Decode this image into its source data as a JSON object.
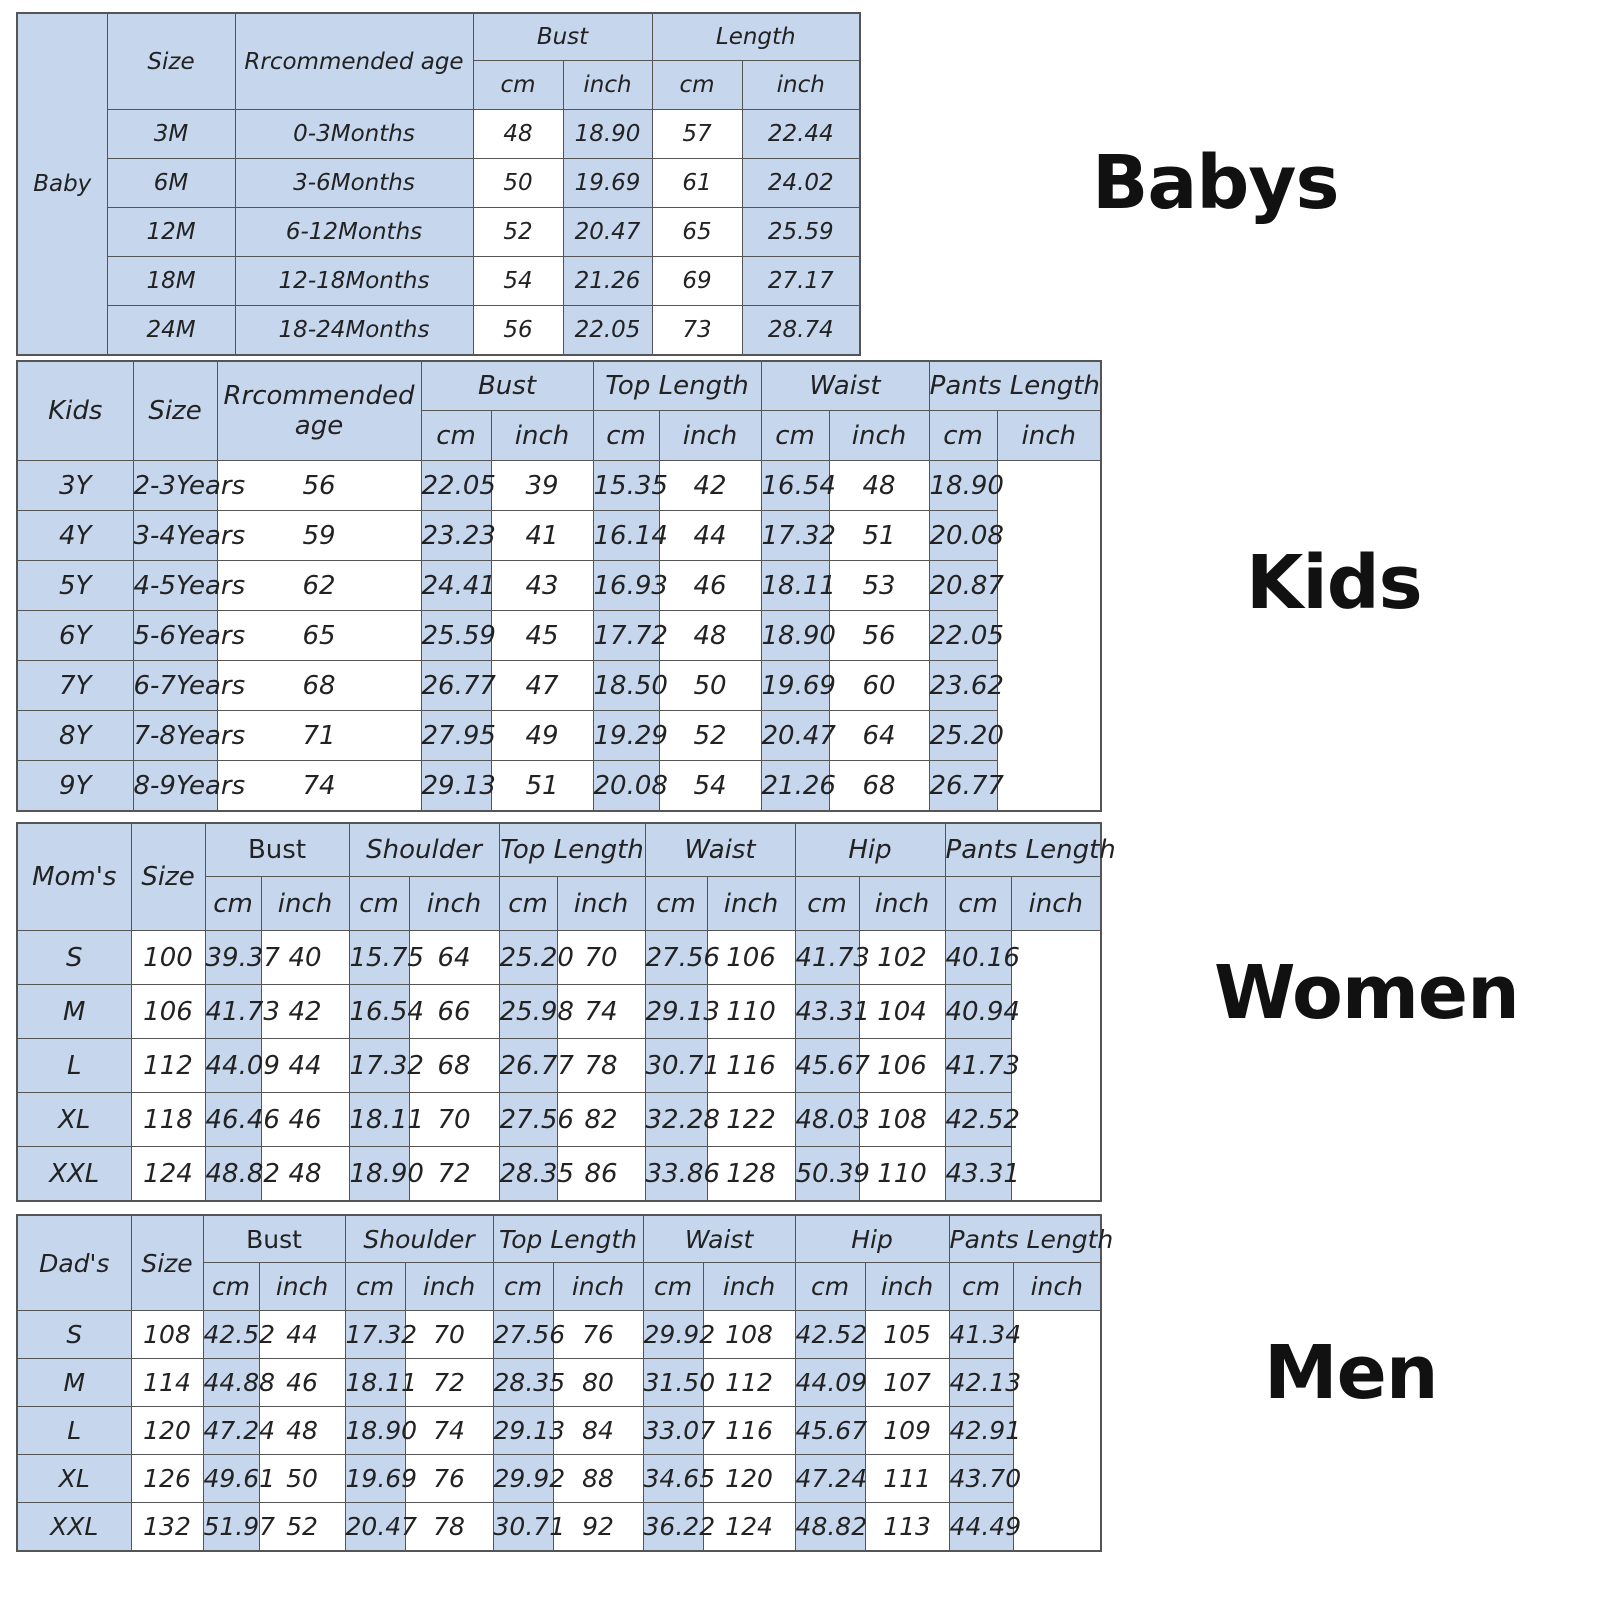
{
  "baby": {
    "category": "Baby",
    "heading": "Babys",
    "headers": {
      "size": "Size",
      "age": "Rrcommended age",
      "bust": "Bust",
      "length": "Length",
      "cm": "cm",
      "inch": "inch"
    },
    "rows": [
      [
        "3M",
        "0-3Months",
        "48",
        "18.90",
        "57",
        "22.44"
      ],
      [
        "6M",
        "3-6Months",
        "50",
        "19.69",
        "61",
        "24.02"
      ],
      [
        "12M",
        "6-12Months",
        "52",
        "20.47",
        "65",
        "25.59"
      ],
      [
        "18M",
        "12-18Months",
        "54",
        "21.26",
        "69",
        "27.17"
      ],
      [
        "24M",
        "18-24Months",
        "56",
        "22.05",
        "73",
        "28.74"
      ]
    ]
  },
  "kids": {
    "category": "Kids",
    "heading": "Kids",
    "headers": {
      "size": "Size",
      "age": "Rrcommended age",
      "bust": "Bust",
      "top_length": "Top Length",
      "waist": "Waist",
      "pants_length": "Pants Length",
      "cm": "cm",
      "inch": "inch"
    },
    "rows": [
      [
        "3Y",
        "2-3Years",
        "56",
        "22.05",
        "39",
        "15.35",
        "42",
        "16.54",
        "48",
        "18.90"
      ],
      [
        "4Y",
        "3-4Years",
        "59",
        "23.23",
        "41",
        "16.14",
        "44",
        "17.32",
        "51",
        "20.08"
      ],
      [
        "5Y",
        "4-5Years",
        "62",
        "24.41",
        "43",
        "16.93",
        "46",
        "18.11",
        "53",
        "20.87"
      ],
      [
        "6Y",
        "5-6Years",
        "65",
        "25.59",
        "45",
        "17.72",
        "48",
        "18.90",
        "56",
        "22.05"
      ],
      [
        "7Y",
        "6-7Years",
        "68",
        "26.77",
        "47",
        "18.50",
        "50",
        "19.69",
        "60",
        "23.62"
      ],
      [
        "8Y",
        "7-8Years",
        "71",
        "27.95",
        "49",
        "19.29",
        "52",
        "20.47",
        "64",
        "25.20"
      ],
      [
        "9Y",
        "8-9Years",
        "74",
        "29.13",
        "51",
        "20.08",
        "54",
        "21.26",
        "68",
        "26.77"
      ]
    ]
  },
  "moms": {
    "category": "Mom's",
    "heading": "Women",
    "headers": {
      "size": "Size",
      "bust": "Bust",
      "shoulder": "Shoulder",
      "top_length": "Top Length",
      "waist": "Waist",
      "hip": "Hip",
      "pants_length": "Pants Length",
      "cm": "cm",
      "inch": "inch"
    },
    "rows": [
      [
        "S",
        "100",
        "39.37",
        "40",
        "15.75",
        "64",
        "25.20",
        "70",
        "27.56",
        "106",
        "41.73",
        "102",
        "40.16"
      ],
      [
        "M",
        "106",
        "41.73",
        "42",
        "16.54",
        "66",
        "25.98",
        "74",
        "29.13",
        "110",
        "43.31",
        "104",
        "40.94"
      ],
      [
        "L",
        "112",
        "44.09",
        "44",
        "17.32",
        "68",
        "26.77",
        "78",
        "30.71",
        "116",
        "45.67",
        "106",
        "41.73"
      ],
      [
        "XL",
        "118",
        "46.46",
        "46",
        "18.11",
        "70",
        "27.56",
        "82",
        "32.28",
        "122",
        "48.03",
        "108",
        "42.52"
      ],
      [
        "XXL",
        "124",
        "48.82",
        "48",
        "18.90",
        "72",
        "28.35",
        "86",
        "33.86",
        "128",
        "50.39",
        "110",
        "43.31"
      ]
    ]
  },
  "dads": {
    "category": "Dad's",
    "heading": "Men",
    "headers": {
      "size": "Size",
      "bust": "Bust",
      "shoulder": "Shoulder",
      "top_length": "Top Length",
      "waist": "Waist",
      "hip": "Hip",
      "pants_length": "Pants Length",
      "cm": "cm",
      "inch": "inch"
    },
    "rows": [
      [
        "S",
        "108",
        "42.52",
        "44",
        "17.32",
        "70",
        "27.56",
        "76",
        "29.92",
        "108",
        "42.52",
        "105",
        "41.34"
      ],
      [
        "M",
        "114",
        "44.88",
        "46",
        "18.11",
        "72",
        "28.35",
        "80",
        "31.50",
        "112",
        "44.09",
        "107",
        "42.13"
      ],
      [
        "L",
        "120",
        "47.24",
        "48",
        "18.90",
        "74",
        "29.13",
        "84",
        "33.07",
        "116",
        "45.67",
        "109",
        "42.91"
      ],
      [
        "XL",
        "126",
        "49.61",
        "50",
        "19.69",
        "76",
        "29.92",
        "88",
        "34.65",
        "120",
        "47.24",
        "111",
        "43.70"
      ],
      [
        "XXL",
        "132",
        "51.97",
        "52",
        "20.47",
        "78",
        "30.71",
        "92",
        "36.22",
        "124",
        "48.82",
        "113",
        "44.49"
      ]
    ]
  }
}
